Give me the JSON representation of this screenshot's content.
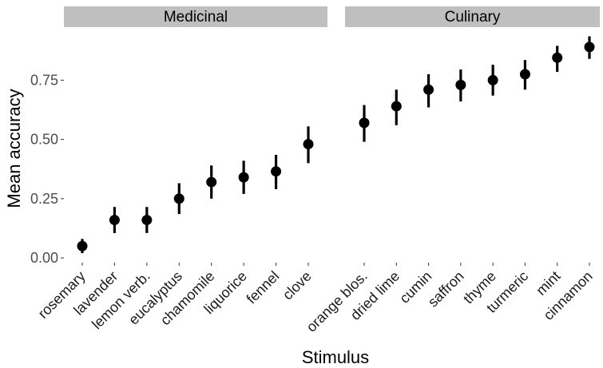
{
  "chart_data": {
    "type": "scatter",
    "title": "",
    "xlabel": "Stimulus",
    "ylabel": "Mean accuracy",
    "ylim": [
      -0.02,
      0.93
    ],
    "yticks": [
      0.0,
      0.25,
      0.5,
      0.75
    ],
    "ytick_labels": [
      "0.00",
      "0.25",
      "0.50",
      "0.75"
    ],
    "grid": false,
    "panels": [
      {
        "name": "Medicinal",
        "categories": [
          "rosemary",
          "lavender",
          "lemon verb.",
          "eucalyptus",
          "chamomile",
          "liquorice",
          "fennel",
          "clove"
        ],
        "values": [
          0.05,
          0.16,
          0.16,
          0.25,
          0.32,
          0.34,
          0.365,
          0.48
        ],
        "lower": [
          0.02,
          0.105,
          0.105,
          0.185,
          0.25,
          0.27,
          0.29,
          0.4
        ],
        "upper": [
          0.08,
          0.215,
          0.215,
          0.315,
          0.39,
          0.41,
          0.435,
          0.555
        ]
      },
      {
        "name": "Culinary",
        "categories": [
          "orange blos.",
          "dried lime",
          "cumin",
          "saffron",
          "thyme",
          "turmeric",
          "mint",
          "cinnamon"
        ],
        "values": [
          0.57,
          0.64,
          0.71,
          0.73,
          0.75,
          0.775,
          0.845,
          0.89
        ],
        "lower": [
          0.49,
          0.56,
          0.635,
          0.66,
          0.685,
          0.71,
          0.785,
          0.84
        ],
        "upper": [
          0.645,
          0.71,
          0.775,
          0.795,
          0.815,
          0.835,
          0.895,
          0.935
        ]
      }
    ]
  }
}
